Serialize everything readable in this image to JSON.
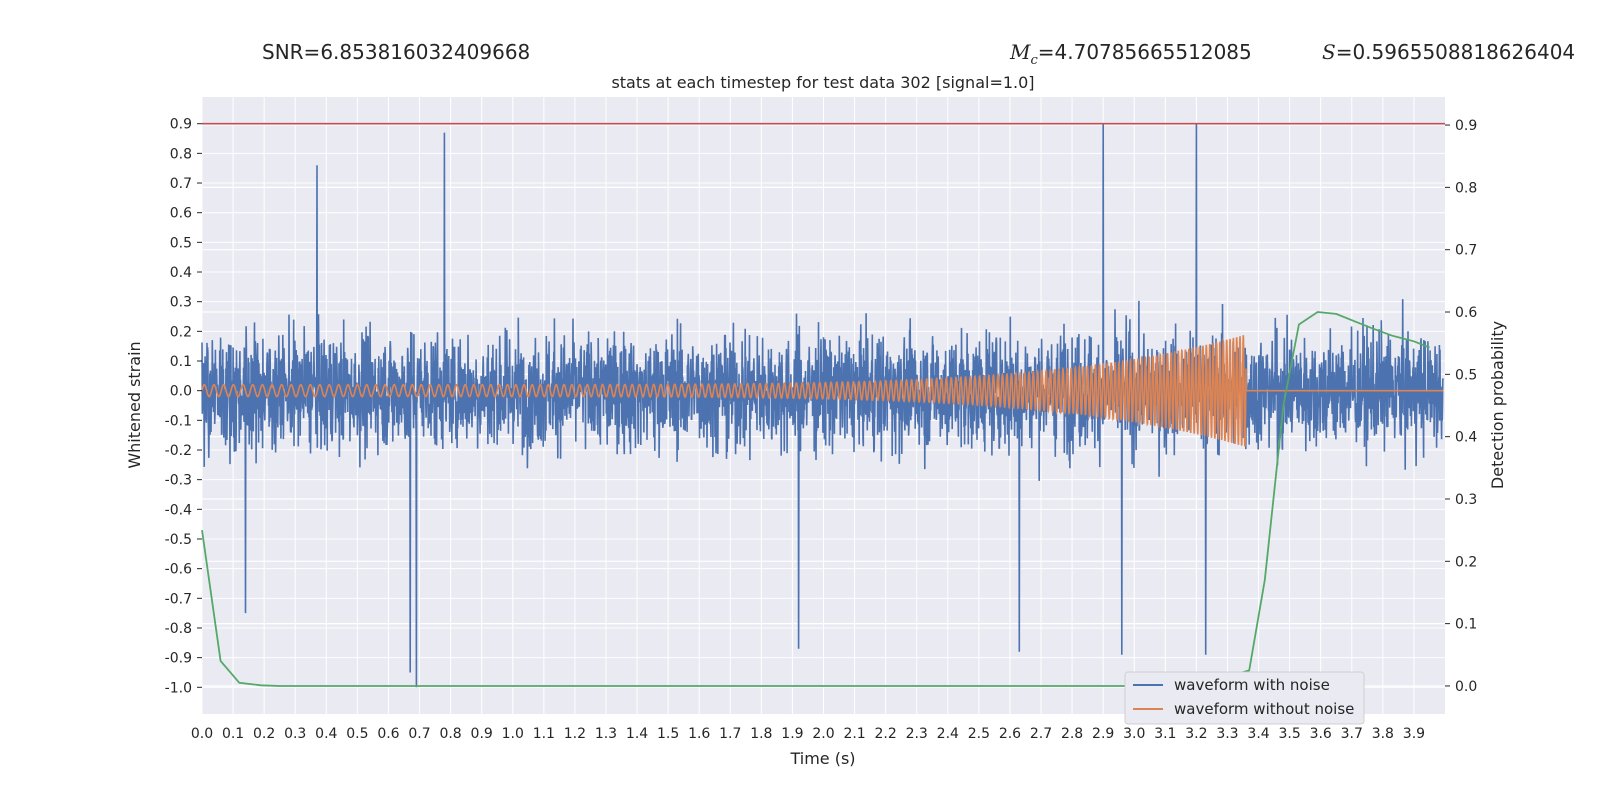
{
  "header": {
    "snr_label": "SNR=",
    "snr_value": "6.853816032409668",
    "mc_symbol": "M",
    "mc_subscript": "c",
    "mc_value": "=4.70785665512085",
    "s_symbol": "S",
    "s_value": "=0.5965508818626404"
  },
  "legend": {
    "with_noise": "waveform with noise",
    "without_noise": "waveform without noise"
  },
  "colors": {
    "background": "#eaeaf2",
    "grid": "#ffffff",
    "noisy": "#4c72b0",
    "clean": "#dd8452",
    "probability": "#55a868",
    "threshold": "#c44e52"
  },
  "chart_data": {
    "type": "line",
    "title": "stats at each timestep for test data 302 [signal=1.0]",
    "xlabel": "Time (s)",
    "ylabel": "Whitened strain",
    "y2label": "Detection probability",
    "xlim": [
      0.0,
      4.0
    ],
    "ylim": [
      -1.09,
      0.99
    ],
    "y2lim": [
      -0.045,
      0.945
    ],
    "x_ticks": [
      "0.0",
      "0.1",
      "0.2",
      "0.3",
      "0.4",
      "0.5",
      "0.6",
      "0.7",
      "0.8",
      "0.9",
      "1.0",
      "1.1",
      "1.2",
      "1.3",
      "1.4",
      "1.5",
      "1.6",
      "1.7",
      "1.8",
      "1.9",
      "2.0",
      "2.1",
      "2.2",
      "2.3",
      "2.4",
      "2.5",
      "2.6",
      "2.7",
      "2.8",
      "2.9",
      "3.0",
      "3.1",
      "3.2",
      "3.3",
      "3.4",
      "3.5",
      "3.6",
      "3.7",
      "3.8",
      "3.9"
    ],
    "y_ticks": [
      "0.9",
      "0.8",
      "0.7",
      "0.6",
      "0.5",
      "0.4",
      "0.3",
      "0.2",
      "0.1",
      "0.0",
      "-0.1",
      "-0.2",
      "-0.3",
      "-0.4",
      "-0.5",
      "-0.6",
      "-0.7",
      "-0.8",
      "-0.9",
      "-1.0"
    ],
    "y2_ticks": [
      "0.9",
      "0.8",
      "0.7",
      "0.6",
      "0.5",
      "0.4",
      "0.3",
      "0.2",
      "0.1",
      "0.0"
    ],
    "threshold": 0.9,
    "series": [
      {
        "name": "waveform with noise",
        "axis": "left",
        "kind": "noise",
        "sample_rate": 1000,
        "envelope_peaks": [
          {
            "x": 0.69,
            "y": -1.0
          },
          {
            "x": 0.67,
            "y": -0.95
          },
          {
            "x": 0.78,
            "y": 0.87
          },
          {
            "x": 2.9,
            "y": 0.9
          },
          {
            "x": 3.2,
            "y": 0.9
          },
          {
            "x": 0.37,
            "y": 0.76
          },
          {
            "x": 1.92,
            "y": -0.87
          },
          {
            "x": 2.63,
            "y": -0.88
          },
          {
            "x": 2.96,
            "y": -0.89
          },
          {
            "x": 3.23,
            "y": -0.89
          },
          {
            "x": 0.14,
            "y": -0.75
          }
        ]
      },
      {
        "name": "waveform without noise",
        "axis": "left",
        "kind": "chirp",
        "start": 0.0,
        "end": 3.36,
        "amplitude_start": 0.02,
        "amplitude_end": 0.19,
        "freq_start": 32,
        "freq_end": 95
      },
      {
        "name": "Detection probability",
        "axis": "right",
        "x": [
          0.0,
          0.06,
          0.12,
          0.19,
          0.25,
          0.5,
          1.0,
          2.0,
          3.0,
          3.2,
          3.37,
          3.42,
          3.48,
          3.53,
          3.59,
          3.65,
          3.71,
          3.77,
          3.83,
          3.9,
          3.95
        ],
        "y": [
          0.25,
          0.04,
          0.005,
          0.001,
          0.0,
          0.0,
          0.0,
          0.0,
          0.0,
          0.0,
          0.025,
          0.17,
          0.45,
          0.58,
          0.6,
          0.597,
          0.585,
          0.573,
          0.562,
          0.553,
          0.543
        ]
      }
    ],
    "legend_position": "lower-right"
  }
}
